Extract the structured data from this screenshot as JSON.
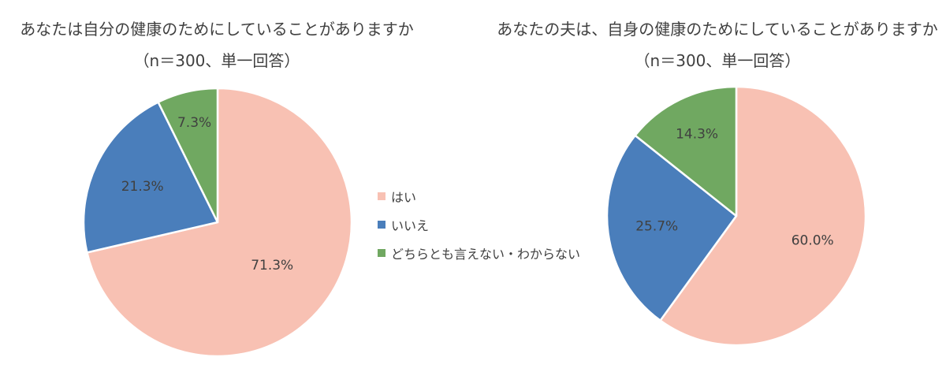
{
  "chart_data": [
    {
      "type": "pie",
      "title": "あなたは自分の健康のためにしていることがありますか",
      "subtitle": "（n＝300、単一回答）",
      "categories": [
        "はい",
        "いいえ",
        "どちらとも言えない・わからない"
      ],
      "values": [
        71.3,
        21.3,
        7.3
      ],
      "data_labels": [
        "71.3%",
        "21.3%",
        "7.3%"
      ],
      "colors": [
        "#F8C1B3",
        "#4A7EBB",
        "#70A861"
      ],
      "start": "12 o'clock",
      "direction": "clockwise"
    },
    {
      "type": "pie",
      "title": "あなたの夫は、自身の健康のためにしていることがありますか",
      "subtitle": "（n＝300、単一回答）",
      "categories": [
        "はい",
        "いいえ",
        "どちらとも言えない・わからない"
      ],
      "values": [
        60.0,
        25.7,
        14.3
      ],
      "data_labels": [
        "60.0%",
        "25.7%",
        "14.3%"
      ],
      "colors": [
        "#F8C1B3",
        "#4A7EBB",
        "#70A861"
      ],
      "start": "12 o'clock",
      "direction": "clockwise"
    }
  ],
  "legend": {
    "placement": "center",
    "items": [
      {
        "label": "はい",
        "color": "#F8C1B3"
      },
      {
        "label": "いいえ",
        "color": "#4A7EBB"
      },
      {
        "label": "どちらとも言えない・わからない",
        "color": "#70A861"
      }
    ]
  }
}
